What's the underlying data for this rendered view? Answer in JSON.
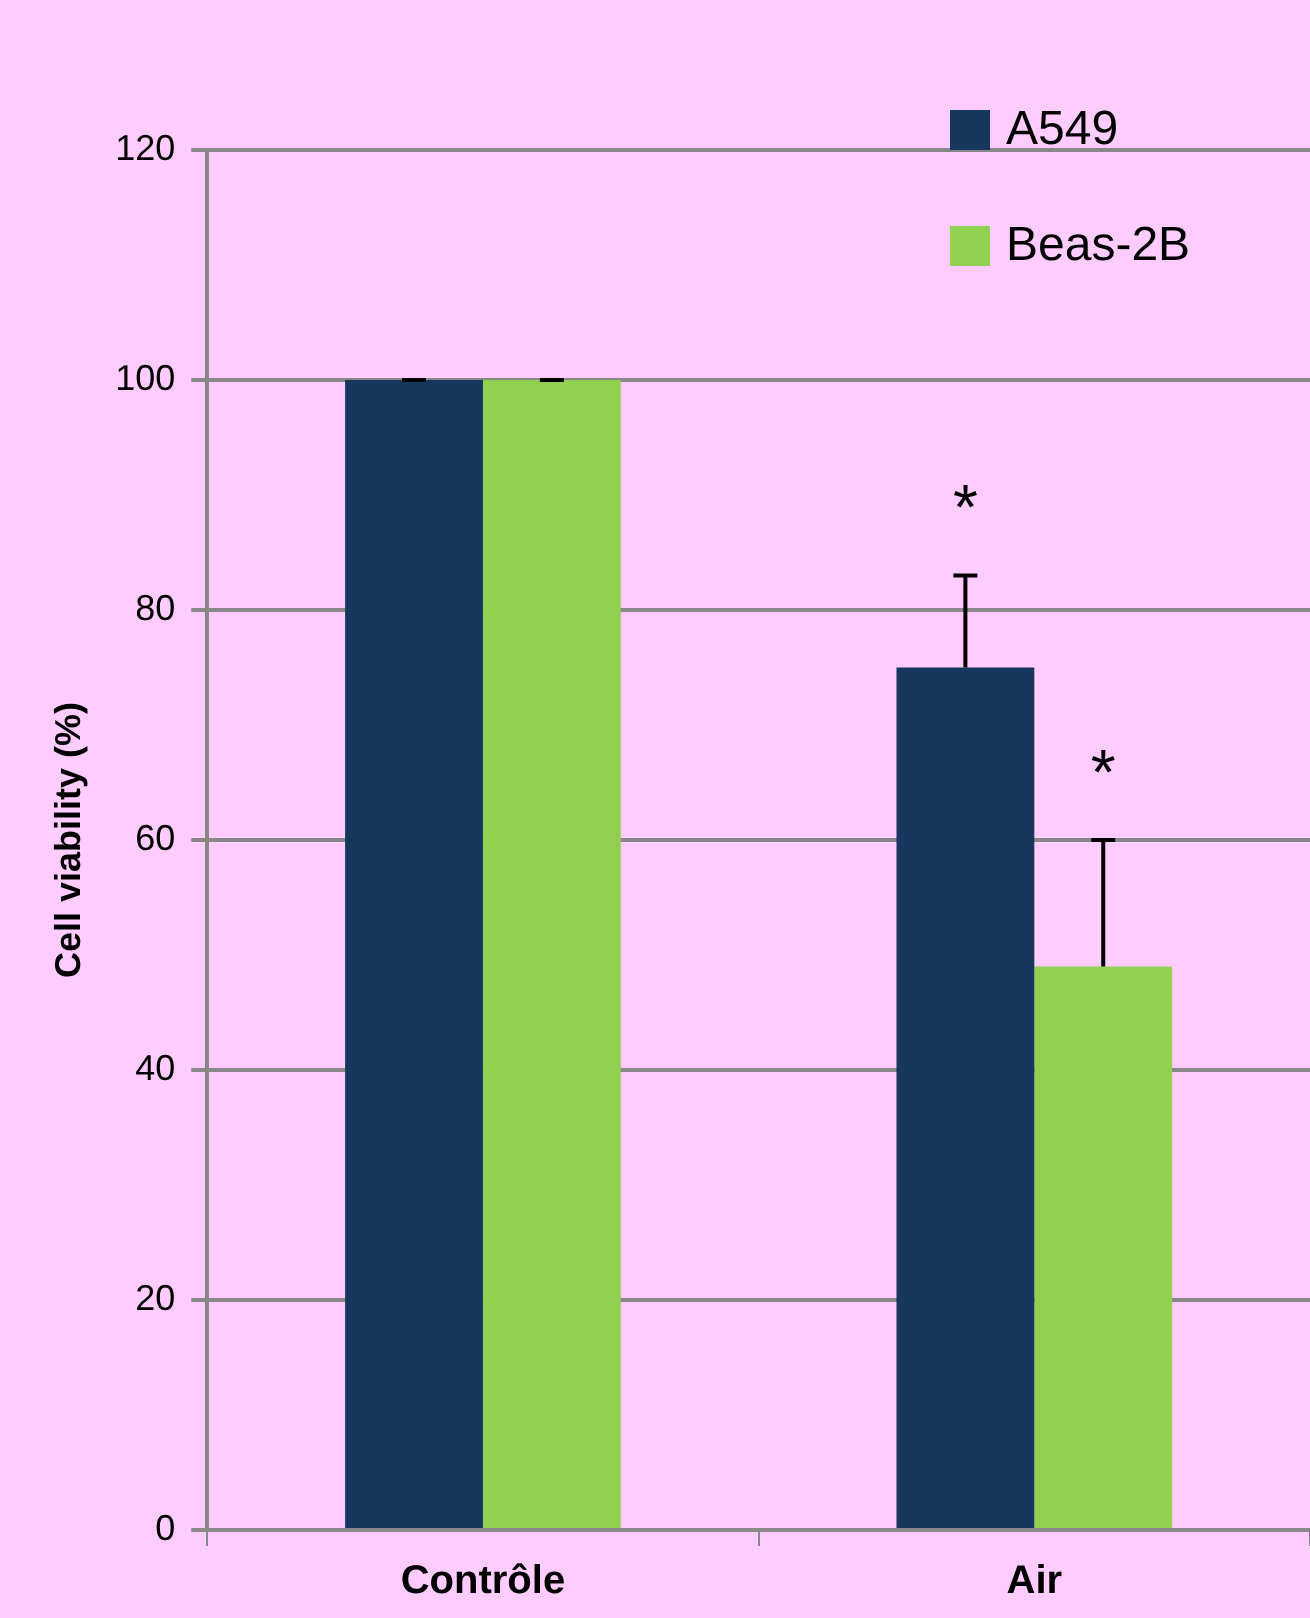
{
  "chart_data": {
    "type": "bar",
    "ylabel": "Cell viability (%)",
    "categories": [
      "Contrôle",
      "Air"
    ],
    "series": [
      {
        "name": "A549",
        "color": "#17375e",
        "values": [
          100,
          75
        ],
        "errors": [
          0,
          8
        ]
      },
      {
        "name": "Beas-2B",
        "color": "#92d050",
        "values": [
          100,
          49
        ],
        "errors": [
          0,
          11
        ]
      }
    ],
    "ylim": [
      0,
      120
    ],
    "yticks": [
      0,
      20,
      40,
      60,
      80,
      100,
      120
    ],
    "grid": "y",
    "legend": "top right",
    "annotations": [
      "*",
      "*"
    ]
  }
}
